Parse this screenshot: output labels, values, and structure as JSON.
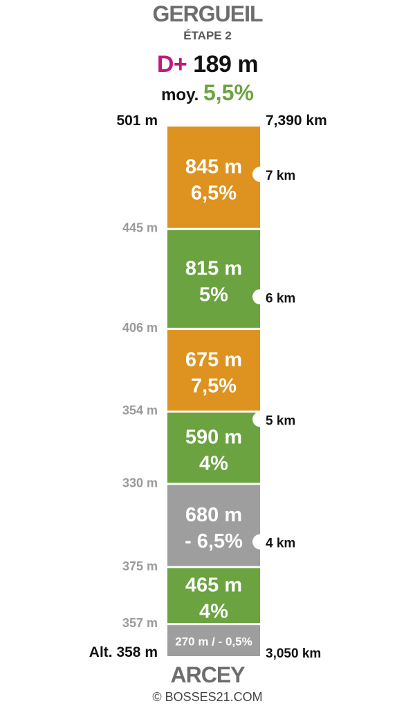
{
  "header": {
    "title": "GERGUEIL",
    "subtitle": "ÉTAPE 2",
    "dplus_label": "D+",
    "dplus_value": "189 m",
    "avg_label": "moy.",
    "avg_value": "5,5%"
  },
  "footer": {
    "start_name": "ARCEY",
    "copyright": "© BOSSES21.COM"
  },
  "colors": {
    "orange": "#de921f",
    "green": "#6aa33f",
    "gray": "#9e9e9e",
    "dplus": "#c0187f",
    "alt_gray": "#9a9a9a"
  },
  "chart_data": {
    "type": "bar",
    "top_altitude_label": "501 m",
    "top_distance_label": "7,390 km",
    "start_altitude_label": "Alt. 358 m",
    "start_distance_label": "3,050 km",
    "segments": [
      {
        "distance_m": 845,
        "length_label": "845 m",
        "grade_label": "6,5%",
        "grade": 6.5,
        "color": "orange",
        "bottom_altitude": "445 m"
      },
      {
        "distance_m": 815,
        "length_label": "815 m",
        "grade_label": "5%",
        "grade": 5,
        "color": "green",
        "bottom_altitude": "406 m"
      },
      {
        "distance_m": 675,
        "length_label": "675 m",
        "grade_label": "7,5%",
        "grade": 7.5,
        "color": "orange",
        "bottom_altitude": "354 m"
      },
      {
        "distance_m": 590,
        "length_label": "590 m",
        "grade_label": "4%",
        "grade": 4,
        "color": "green",
        "bottom_altitude": "330 m"
      },
      {
        "distance_m": 680,
        "length_label": "680 m",
        "grade_label": "- 6,5%",
        "grade": -6.5,
        "color": "gray",
        "bottom_altitude": "375 m"
      },
      {
        "distance_m": 465,
        "length_label": "465 m",
        "grade_label": "4%",
        "grade": 4,
        "color": "green",
        "bottom_altitude": "357 m"
      },
      {
        "distance_m": 270,
        "length_label": "270 m / - 0,5%",
        "grade_label": "",
        "grade": -0.5,
        "color": "gray",
        "bottom_altitude": ""
      }
    ],
    "km_markers": [
      {
        "km": 7,
        "label": "7 km"
      },
      {
        "km": 6,
        "label": "6 km"
      },
      {
        "km": 5,
        "label": "5 km"
      },
      {
        "km": 4,
        "label": "4 km"
      }
    ]
  }
}
